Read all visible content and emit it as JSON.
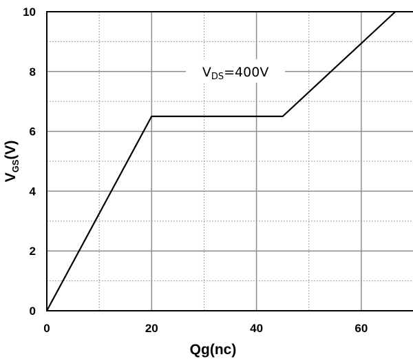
{
  "chart_data": {
    "type": "line",
    "title": "",
    "xlabel": "Qg(nc)",
    "ylabel": {
      "base": "V",
      "sub": "GS",
      "suffix": "(V)"
    },
    "xlim": [
      0,
      70
    ],
    "ylim": [
      0,
      10
    ],
    "x_ticks": [
      0,
      20,
      40,
      60
    ],
    "y_ticks": [
      0,
      2,
      4,
      6,
      8,
      10
    ],
    "grid": true,
    "series": [
      {
        "x": [
          0,
          20,
          45,
          66.5
        ],
        "y": [
          0,
          6.5,
          6.5,
          10
        ],
        "color": "#000000"
      }
    ],
    "annotations": [
      {
        "base": "V",
        "sub": "DS",
        "suffix": "=400V",
        "x": 36,
        "y": 8.0
      }
    ]
  }
}
